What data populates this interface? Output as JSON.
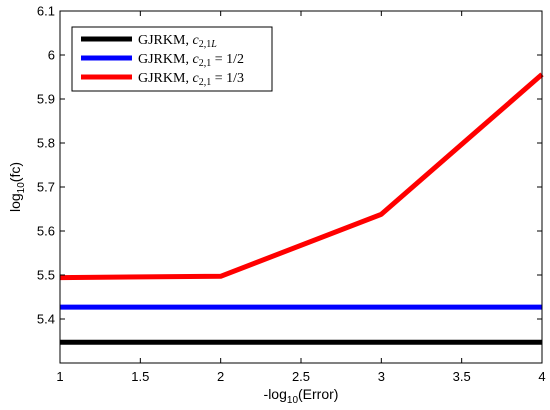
{
  "chart_data": {
    "type": "line",
    "xlabel": {
      "base": "-log",
      "sub": "10",
      "rest": "(Error)"
    },
    "ylabel": {
      "base": "log",
      "sub": "10",
      "rest": "(fc)"
    },
    "xlim": [
      1,
      4
    ],
    "ylim": [
      5.3,
      6.1
    ],
    "xticks": [
      1,
      1.5,
      2,
      2.5,
      3,
      3.5,
      4
    ],
    "xtick_labels": [
      "1",
      "1.5",
      "2",
      "2.5",
      "3",
      "3.5",
      "4"
    ],
    "yticks": [
      5.4,
      5.5,
      5.6,
      5.7,
      5.8,
      5.9,
      6,
      6.1
    ],
    "ytick_labels": [
      "5.4",
      "5.5",
      "5.6",
      "5.7",
      "5.8",
      "5.9",
      "6",
      "6.1"
    ],
    "grid": false,
    "legend_position": "top-left",
    "series": [
      {
        "name": "GJRKM, c2,1L",
        "legend": {
          "prefix": "GJRKM, ",
          "var": "c",
          "sub": "2,1",
          "subItalic": "L",
          "suffix": ""
        },
        "color": "#000000",
        "x": [
          1,
          2,
          3,
          4
        ],
        "y": [
          5.347,
          5.347,
          5.347,
          5.347
        ]
      },
      {
        "name": "GJRKM, c2,1 = 1/2",
        "legend": {
          "prefix": "GJRKM, ",
          "var": "c",
          "sub": "2,1",
          "subItalic": "",
          "suffix": " = 1/2"
        },
        "color": "#0000ff",
        "x": [
          1,
          2,
          3,
          4
        ],
        "y": [
          5.427,
          5.427,
          5.427,
          5.427
        ]
      },
      {
        "name": "GJRKM, c2,1 = 1/3",
        "legend": {
          "prefix": "GJRKM, ",
          "var": "c",
          "sub": "2,1",
          "subItalic": "",
          "suffix": " = 1/3"
        },
        "color": "#ff0000",
        "x": [
          1,
          2,
          3,
          4
        ],
        "y": [
          5.494,
          5.497,
          5.638,
          5.956
        ]
      }
    ]
  }
}
